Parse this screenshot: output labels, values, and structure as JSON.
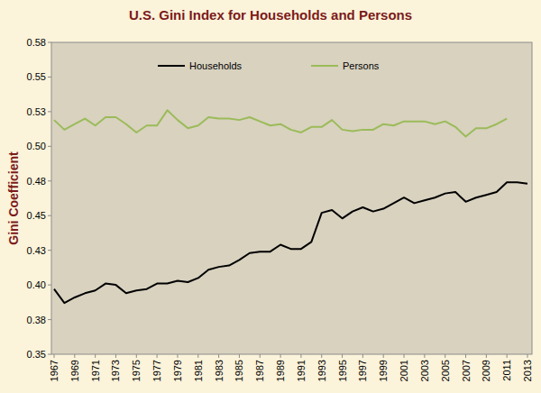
{
  "chart_data": {
    "type": "line",
    "title": "U.S. Gini Index for Households and Persons",
    "y_label": "Gini Coefficient",
    "categories": [
      "1967",
      null,
      "1969",
      null,
      "1971",
      null,
      "1973",
      null,
      "1975",
      null,
      "1977",
      null,
      "1979",
      null,
      "1981",
      null,
      "1983",
      null,
      "1985",
      null,
      "1987",
      null,
      "1989",
      null,
      "1991",
      null,
      "1993",
      null,
      "1995",
      null,
      "1997",
      null,
      "1999",
      null,
      "2001",
      null,
      "2003",
      null,
      "2005",
      null,
      "2007",
      null,
      "2009",
      null,
      "2011",
      null,
      "2013"
    ],
    "series": [
      {
        "name": "Households",
        "color": "#000000",
        "values": [
          0.397,
          0.387,
          0.391,
          0.394,
          0.396,
          0.401,
          0.4,
          0.394,
          0.396,
          0.397,
          0.401,
          0.401,
          0.403,
          0.402,
          0.405,
          0.411,
          0.413,
          0.414,
          0.418,
          0.423,
          0.424,
          0.424,
          0.429,
          0.426,
          0.426,
          0.431,
          0.452,
          0.454,
          0.448,
          0.453,
          0.456,
          0.453,
          0.455,
          0.459,
          0.463,
          0.459,
          0.461,
          0.463,
          0.466,
          0.467,
          0.46,
          0.463,
          0.465,
          0.467,
          0.474,
          0.474,
          0.473
        ]
      },
      {
        "name": "Persons",
        "color": "#9bbb59",
        "values": [
          0.519,
          0.512,
          0.516,
          0.52,
          0.515,
          0.521,
          0.521,
          0.516,
          0.51,
          0.515,
          0.515,
          0.526,
          0.519,
          0.513,
          0.515,
          0.521,
          0.52,
          0.52,
          0.519,
          0.521,
          0.518,
          0.515,
          0.516,
          0.512,
          0.51,
          0.514,
          0.514,
          0.519,
          0.512,
          0.511,
          0.512,
          0.512,
          0.516,
          0.515,
          0.518,
          0.518,
          0.518,
          0.516,
          0.518,
          0.514,
          0.507,
          0.513,
          0.513,
          0.516,
          0.52,
          null,
          null
        ]
      }
    ],
    "ylim": [
      0.35,
      0.575
    ],
    "yticks": [
      0.35,
      {
        "value": 0.375,
        "label": "0.38"
      },
      {
        "value": 0.4,
        "label": "0.40"
      },
      {
        "value": 0.425,
        "label": "0.43"
      },
      0.45,
      {
        "value": 0.475,
        "label": "0.48"
      },
      {
        "value": 0.5,
        "label": "0.50"
      },
      {
        "value": 0.525,
        "label": "0.53"
      },
      0.55,
      {
        "value": 0.575,
        "label": "0.58"
      }
    ],
    "grid": false,
    "legend": "top"
  }
}
